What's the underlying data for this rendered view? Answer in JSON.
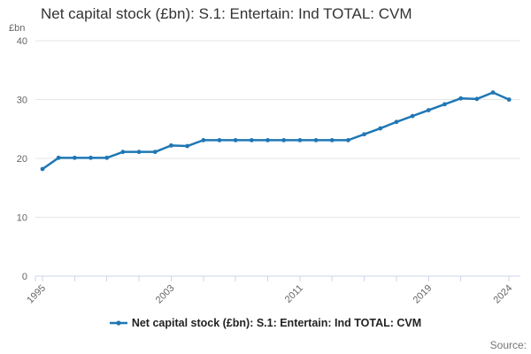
{
  "source_label": "Source:",
  "colors": {
    "line": "#1f77b4",
    "grid": "#e6e6e6",
    "axis_line": "#ccd6eb",
    "tick_label": "#666666",
    "title_text": "#333333"
  },
  "chart_data": {
    "type": "line",
    "title": "Net capital stock (£bn): S.1: Entertain: Ind TOTAL: CVM",
    "ylabel": "£bn",
    "x": [
      1995,
      1996,
      1997,
      1998,
      1999,
      2000,
      2001,
      2002,
      2003,
      2004,
      2005,
      2006,
      2007,
      2008,
      2009,
      2010,
      2011,
      2012,
      2013,
      2014,
      2015,
      2016,
      2017,
      2018,
      2019,
      2020,
      2021,
      2022,
      2023,
      2024
    ],
    "series": [
      {
        "name": "Net capital stock (£bn): S.1: Entertain: Ind TOTAL: CVM",
        "values": [
          18.2,
          20.1,
          20.1,
          20.1,
          20.1,
          21.1,
          21.1,
          21.1,
          22.2,
          22.1,
          23.1,
          23.1,
          23.1,
          23.1,
          23.1,
          23.1,
          23.1,
          23.1,
          23.1,
          23.1,
          24.1,
          25.1,
          26.2,
          27.2,
          28.2,
          29.2,
          30.2,
          30.1,
          31.2,
          30.0
        ]
      }
    ],
    "ylim": [
      0,
      40
    ],
    "yticks": [
      0,
      10,
      20,
      30,
      40
    ],
    "xticks": [
      1995,
      1997,
      1999,
      2001,
      2003,
      2005,
      2007,
      2009,
      2011,
      2013,
      2015,
      2017,
      2019,
      2021,
      2024
    ],
    "xtick_labels": [
      1995,
      2003,
      2011,
      2019,
      2024
    ],
    "grid": true,
    "legend_position": "bottom",
    "marker": "circle"
  }
}
